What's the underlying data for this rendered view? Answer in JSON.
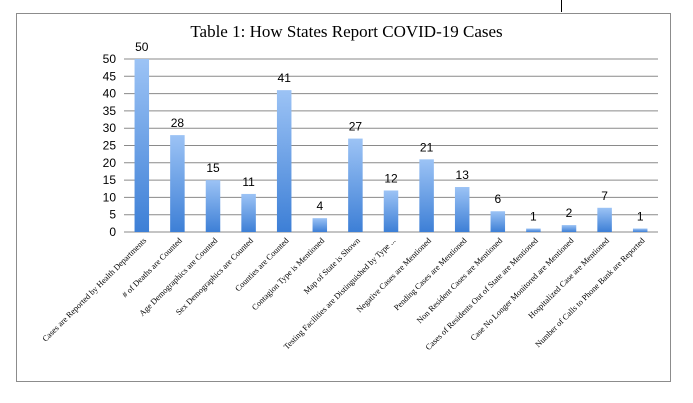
{
  "chart_data": {
    "type": "bar",
    "title": "Table 1: How States Report COVID-19 Cases",
    "xlabel": "",
    "ylabel": "",
    "ylim": [
      0,
      50
    ],
    "yticks": [
      0,
      5,
      10,
      15,
      20,
      25,
      30,
      35,
      40,
      45,
      50
    ],
    "grid": true,
    "legend": "none",
    "bar_color_top": "#9cc3f5",
    "bar_color_bottom": "#3d7fd6",
    "grid_color": "#8a8a8a",
    "categories": [
      "Cases are Reported by Health Departments",
      "# of Deaths are Counted",
      "Age Demographics are Counted",
      "Sex Demographics are Counted",
      "Counties are Counted",
      "Contagion Type is Mentioned",
      "Map of State is Shown",
      "Testing Facilities are Distinguished by Type ...",
      "Negative Cases are Mentioned",
      "Pending Cases are Mentioned",
      "Non Resident Cases are Mentioned",
      "Cases of Residents Out of State are Mentioned",
      "Case No Longer Monitored are Mentioned",
      "Hospitalized Case are Mentioned",
      "Number of Calls to Phone Bank are Reported"
    ],
    "values": [
      50,
      28,
      15,
      11,
      41,
      4,
      27,
      12,
      21,
      13,
      6,
      1,
      2,
      7,
      1
    ]
  }
}
